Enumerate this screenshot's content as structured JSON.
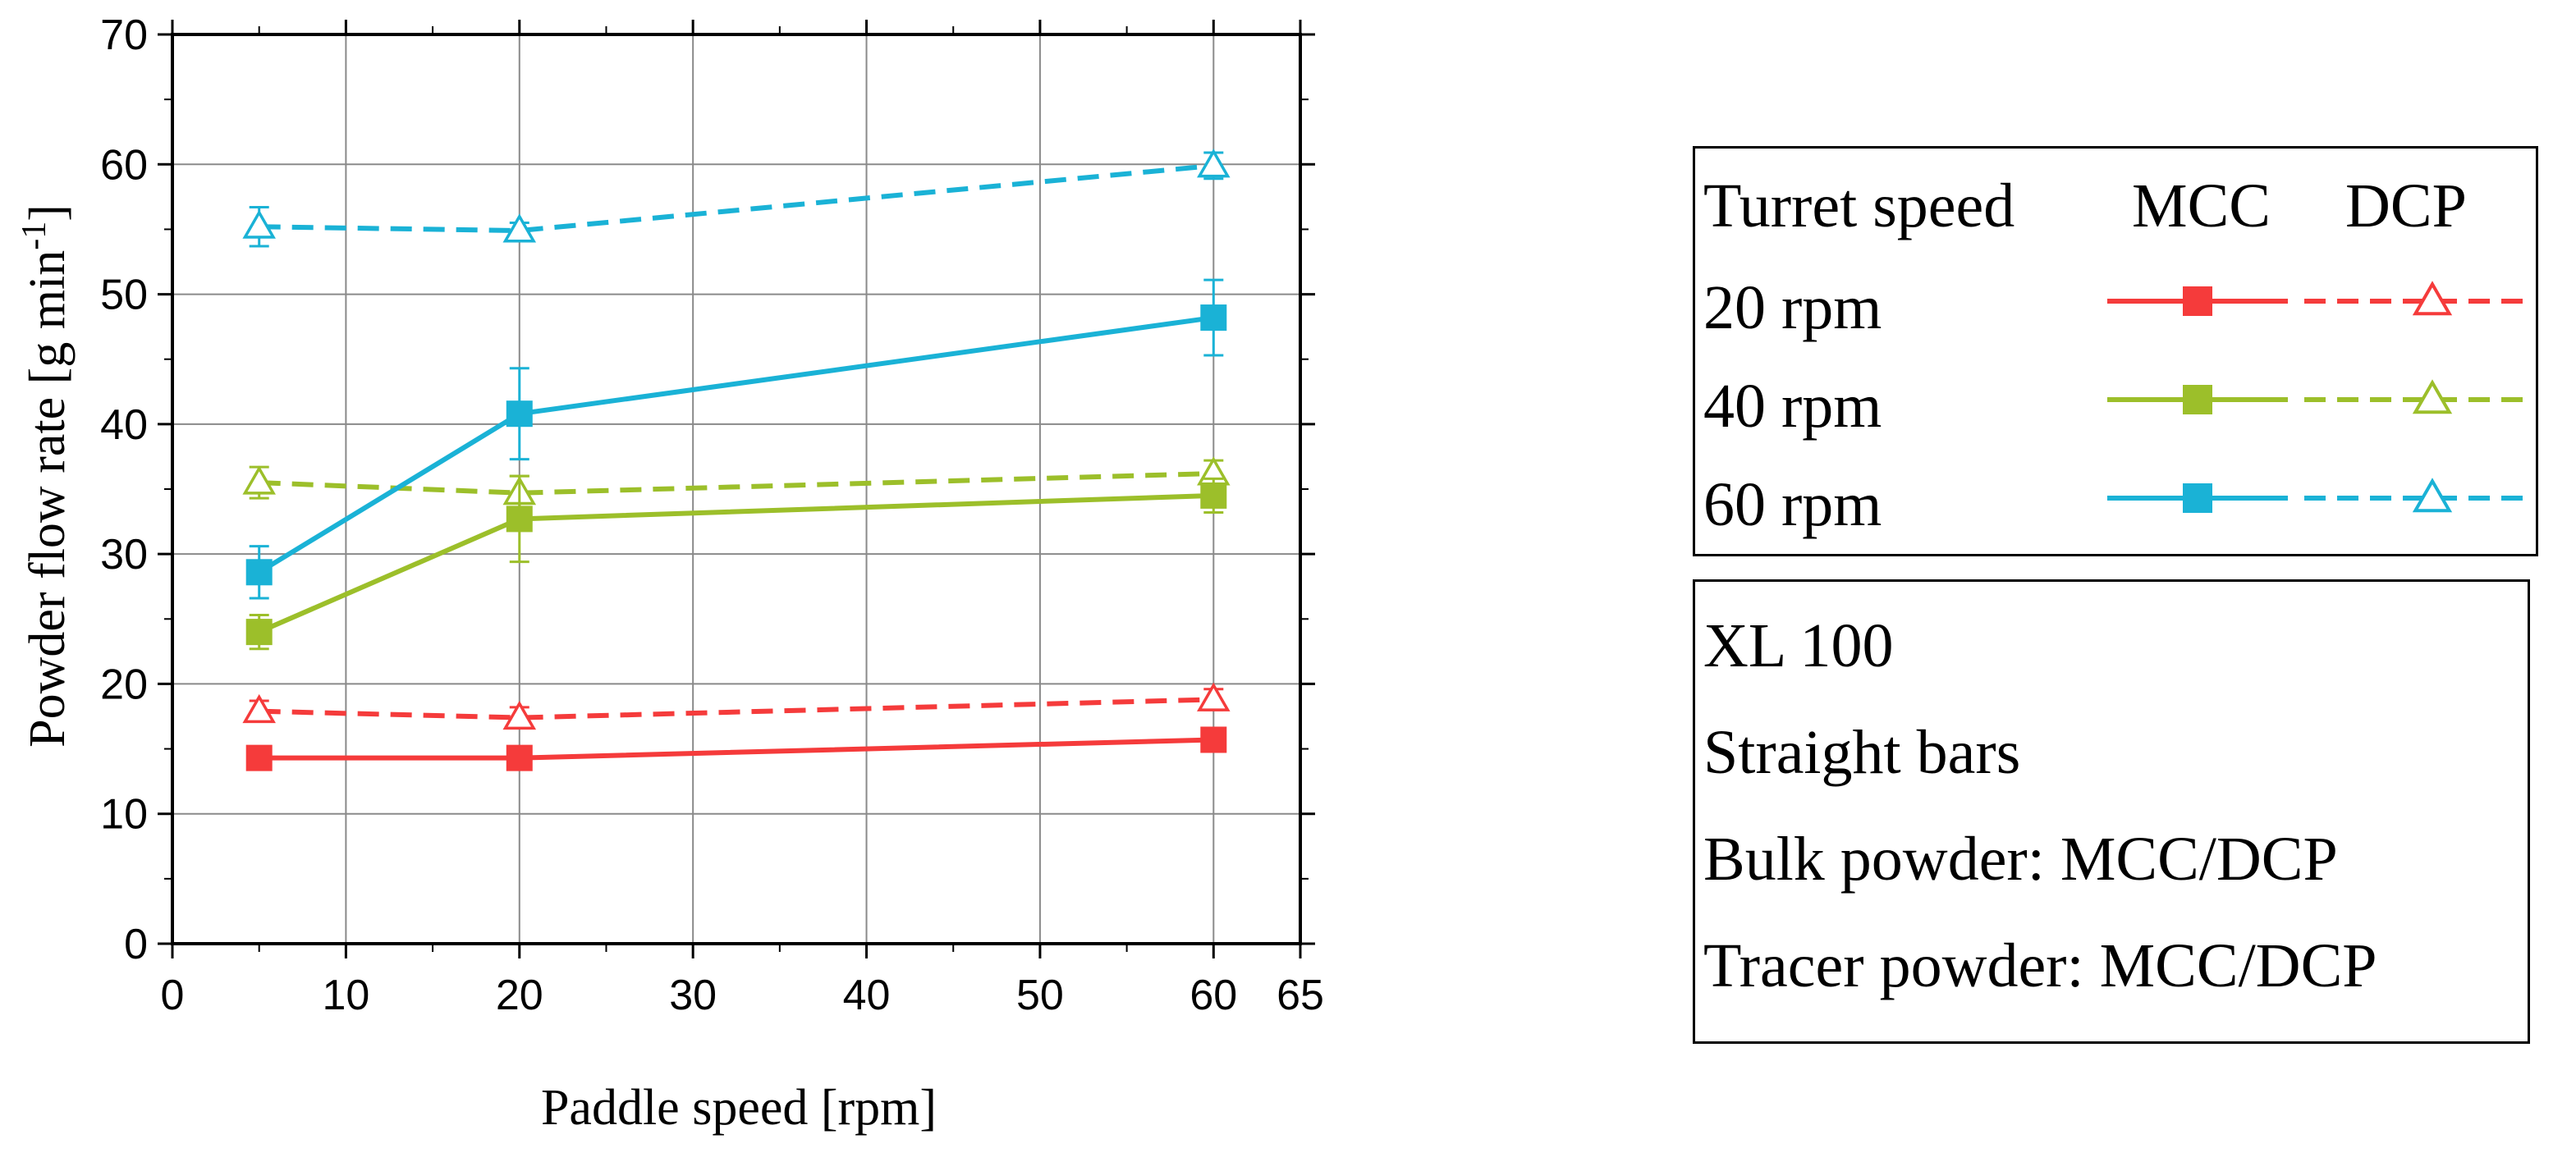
{
  "chart_data": {
    "type": "line",
    "xlabel": "Paddle speed [rpm]",
    "ylabel_main": "Powder flow rate [g min",
    "ylabel_sup": "-1",
    "ylabel_end": "]",
    "xlim": [
      0,
      65
    ],
    "ylim": [
      0,
      70
    ],
    "x_ticks": [
      0,
      10,
      20,
      30,
      40,
      50,
      60,
      65
    ],
    "x_tick_labels": [
      "0",
      "10",
      "20",
      "30",
      "40",
      "50",
      "60",
      "65"
    ],
    "y_ticks": [
      0,
      10,
      20,
      30,
      40,
      50,
      60,
      70
    ],
    "y_tick_labels": [
      "0",
      "10",
      "20",
      "30",
      "40",
      "50",
      "60",
      "70"
    ],
    "grid": true,
    "x": [
      5,
      20,
      60
    ],
    "series": [
      {
        "name": "MCC 20 rpm",
        "material": "MCC",
        "turret": "20 rpm",
        "color": "#f53b3b",
        "dashed": false,
        "marker": "square",
        "values": [
          14.3,
          14.3,
          15.7
        ],
        "err": [
          0.6,
          0.6,
          0.8
        ]
      },
      {
        "name": "DCP 20 rpm",
        "material": "DCP",
        "turret": "20 rpm",
        "color": "#f53b3b",
        "dashed": true,
        "marker": "triangle",
        "values": [
          17.9,
          17.4,
          18.8
        ],
        "err": [
          0.8,
          0.8,
          0.8
        ]
      },
      {
        "name": "MCC 40 rpm",
        "material": "MCC",
        "turret": "40 rpm",
        "color": "#9cbf2a",
        "dashed": false,
        "marker": "square",
        "values": [
          24.0,
          32.7,
          34.5
        ],
        "err": [
          1.3,
          3.3,
          1.3
        ]
      },
      {
        "name": "DCP 40 rpm",
        "material": "DCP",
        "turret": "40 rpm",
        "color": "#9cbf2a",
        "dashed": true,
        "marker": "triangle",
        "values": [
          35.5,
          34.7,
          36.2
        ],
        "err": [
          1.2,
          1.3,
          1.0
        ]
      },
      {
        "name": "MCC 60 rpm",
        "material": "MCC",
        "turret": "60 rpm",
        "color": "#1ab2d6",
        "dashed": false,
        "marker": "square",
        "values": [
          28.6,
          40.8,
          48.2
        ],
        "err": [
          2.0,
          3.5,
          2.9
        ]
      },
      {
        "name": "DCP 60 rpm",
        "material": "DCP",
        "turret": "60 rpm",
        "color": "#1ab2d6",
        "dashed": true,
        "marker": "triangle",
        "values": [
          55.2,
          54.9,
          59.9
        ],
        "err": [
          1.5,
          0.6,
          1.0
        ]
      }
    ],
    "legend": {
      "header": {
        "col0": "Turret speed",
        "col1": "MCC",
        "col2": "DCP"
      },
      "rows": [
        {
          "label": "20 rpm",
          "color": "#f53b3b"
        },
        {
          "label": "40 rpm",
          "color": "#9cbf2a"
        },
        {
          "label": "60 rpm",
          "color": "#1ab2d6"
        }
      ]
    },
    "info_box": [
      "XL 100",
      "Straight bars",
      "Bulk powder: MCC/DCP",
      "Tracer powder: MCC/DCP"
    ]
  }
}
